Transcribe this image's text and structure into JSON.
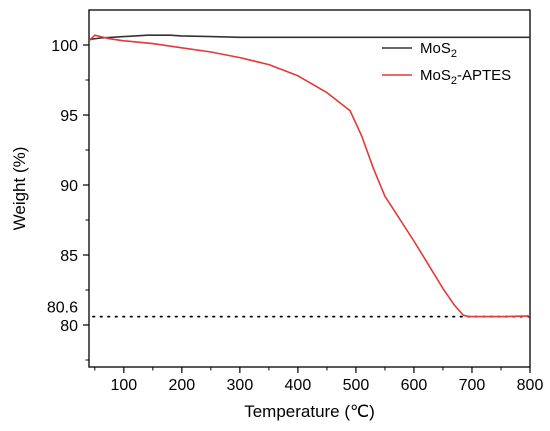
{
  "chart_data": {
    "type": "line",
    "xlabel": "Temperature (℃)",
    "ylabel": "Weight (%)",
    "xlim": [
      40,
      800
    ],
    "ylim": [
      77,
      102.5
    ],
    "x_ticks": [
      100,
      200,
      300,
      400,
      500,
      600,
      700,
      800
    ],
    "y_ticks": [
      80,
      85,
      90,
      95,
      100
    ],
    "grid": false,
    "legend_position": "top-right",
    "series": [
      {
        "name": "MoS2",
        "legend_main": "MoS",
        "legend_sub": "2",
        "legend_suffix": "",
        "color": "#333333",
        "x": [
          40,
          60,
          80,
          100,
          120,
          140,
          160,
          180,
          200,
          250,
          300,
          400,
          500,
          600,
          700,
          800
        ],
        "y": [
          100.4,
          100.5,
          100.55,
          100.6,
          100.65,
          100.7,
          100.7,
          100.7,
          100.65,
          100.6,
          100.55,
          100.55,
          100.55,
          100.55,
          100.55,
          100.55
        ]
      },
      {
        "name": "MoS2-APTES",
        "legend_main": "MoS",
        "legend_sub": "2",
        "legend_suffix": "-APTES",
        "color": "#e03a3a",
        "x": [
          40,
          50,
          60,
          75,
          100,
          150,
          200,
          250,
          300,
          350,
          400,
          450,
          490,
          510,
          530,
          550,
          575,
          600,
          625,
          650,
          670,
          685,
          695,
          710,
          750,
          800
        ],
        "y": [
          100.3,
          100.7,
          100.6,
          100.45,
          100.3,
          100.1,
          99.8,
          99.5,
          99.1,
          98.6,
          97.8,
          96.6,
          95.3,
          93.5,
          91.2,
          89.2,
          87.6,
          86.0,
          84.3,
          82.6,
          81.4,
          80.7,
          80.6,
          80.6,
          80.6,
          80.65
        ]
      }
    ],
    "annotations": [
      {
        "type": "hline",
        "y": 80.6,
        "style": "dotted",
        "label": "80.6",
        "color": "#000000"
      }
    ]
  }
}
